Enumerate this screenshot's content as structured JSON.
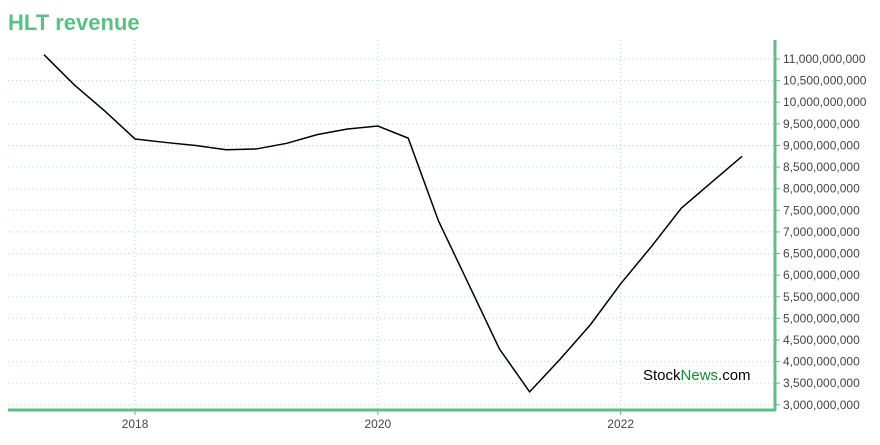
{
  "chart_data": {
    "type": "line",
    "title": "HLT revenue",
    "categories": [
      null,
      null,
      null,
      "2018",
      null,
      null,
      null,
      null,
      null,
      null,
      null,
      "2020",
      null,
      null,
      null,
      null,
      null,
      null,
      null,
      "2022",
      null,
      null,
      null,
      null
    ],
    "series": [
      {
        "name": "revenue",
        "color": "#000000",
        "values": [
          11100000000,
          10400000000,
          9800000000,
          9150000000,
          9070000000,
          9000000000,
          8900000000,
          8920000000,
          9050000000,
          9250000000,
          9380000000,
          9450000000,
          9170000000,
          7250000000,
          5780000000,
          4300000000,
          3300000000,
          4050000000,
          4850000000,
          5800000000,
          6650000000,
          7550000000,
          8150000000,
          8750000000
        ]
      }
    ],
    "ylim": [
      2880000000,
      11440000000
    ],
    "yticks": [
      {
        "value": 3000000000,
        "label": "3,000,000,000"
      },
      {
        "value": 3500000000,
        "label": "3,500,000,000"
      },
      {
        "value": 4000000000,
        "label": "4,000,000,000"
      },
      {
        "value": 4500000000,
        "label": "4,500,000,000"
      },
      {
        "value": 5000000000,
        "label": "5,000,000,000"
      },
      {
        "value": 5500000000,
        "label": "5,500,000,000"
      },
      {
        "value": 6000000000,
        "label": "6,000,000,000"
      },
      {
        "value": 6500000000,
        "label": "6,500,000,000"
      },
      {
        "value": 7000000000,
        "label": "7,000,000,000"
      },
      {
        "value": 7500000000,
        "label": "7,500,000,000"
      },
      {
        "value": 8000000000,
        "label": "8,000,000,000"
      },
      {
        "value": 8500000000,
        "label": "8,500,000,000"
      },
      {
        "value": 9000000000,
        "label": "9,000,000,000"
      },
      {
        "value": 9500000000,
        "label": "9,500,000,000"
      },
      {
        "value": 10000000000,
        "label": "10,000,000,000"
      },
      {
        "value": 10500000000,
        "label": "10,500,000,000"
      },
      {
        "value": 11000000000,
        "label": "11,000,000,000"
      }
    ],
    "grid": true,
    "watermark": [
      "Stock",
      "News",
      ".com"
    ]
  }
}
